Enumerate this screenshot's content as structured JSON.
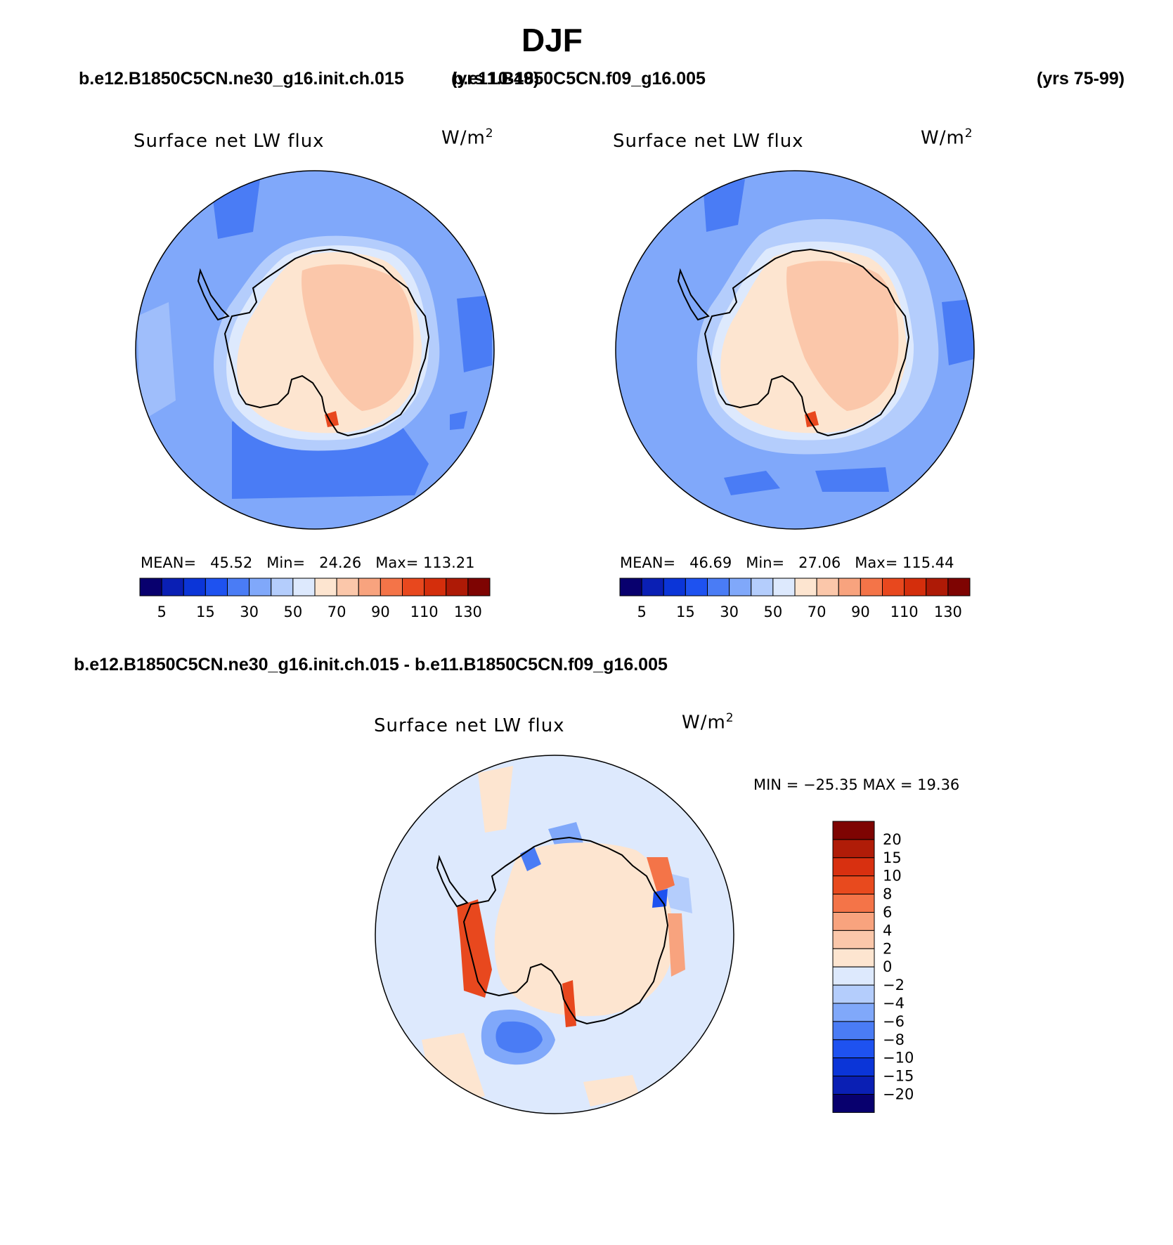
{
  "title": "DJF",
  "header": {
    "case_a": "b.e12.B1850C5CN.ne30_g16.init.ch.015",
    "case_a_years": "(yrs 10-49)",
    "case_b": "b.e11.B1850C5CN.f09_g16.005",
    "case_b_years": "(yrs 75-99)"
  },
  "panels": [
    {
      "variable": "Surface net LW flux",
      "units": "W/m",
      "units_exp": "2",
      "mean_label": "MEAN=",
      "mean": "45.52",
      "min_label": "Min=",
      "min": "24.26",
      "max_label": "Max=",
      "max": "113.21"
    },
    {
      "variable": "Surface net LW flux",
      "units": "W/m",
      "units_exp": "2",
      "mean_label": "MEAN=",
      "mean": "46.69",
      "min_label": "Min=",
      "min": "27.06",
      "max_label": "Max=",
      "max": "115.44"
    }
  ],
  "colorbar": {
    "tick_labels": [
      "5",
      "15",
      "30",
      "50",
      "70",
      "90",
      "110",
      "130"
    ],
    "colors": [
      "#08006e",
      "#0a1fb4",
      "#0b35d8",
      "#1e52f0",
      "#4a7cf5",
      "#80a8fa",
      "#b4cdfc",
      "#dde9fd",
      "#fde5d0",
      "#fbc7aa",
      "#f8a37e",
      "#f47448",
      "#e8481e",
      "#d42e0c",
      "#ae1a06",
      "#7e0402"
    ]
  },
  "difference": {
    "title": "b.e12.B1850C5CN.ne30_g16.init.ch.015 - b.e11.B1850C5CN.f09_g16.005",
    "variable": "Surface net LW flux",
    "units": "W/m",
    "units_exp": "2",
    "min_max_text": "MIN = −25.35 MAX =   19.36",
    "colorbar_labels": [
      "20",
      "15",
      "10",
      "8",
      "6",
      "4",
      "2",
      "0",
      "−2",
      "−4",
      "−6",
      "−8",
      "−10",
      "−15",
      "−20"
    ],
    "colors": [
      "#7e0402",
      "#b01c08",
      "#d83010",
      "#e84a1e",
      "#f47448",
      "#f8a37e",
      "#fbc7aa",
      "#fde5d0",
      "#dde9fd",
      "#b4cdfc",
      "#80a8fa",
      "#4a7cf5",
      "#1e52f0",
      "#0b35d8",
      "#0a1fb4",
      "#08006e"
    ]
  }
}
